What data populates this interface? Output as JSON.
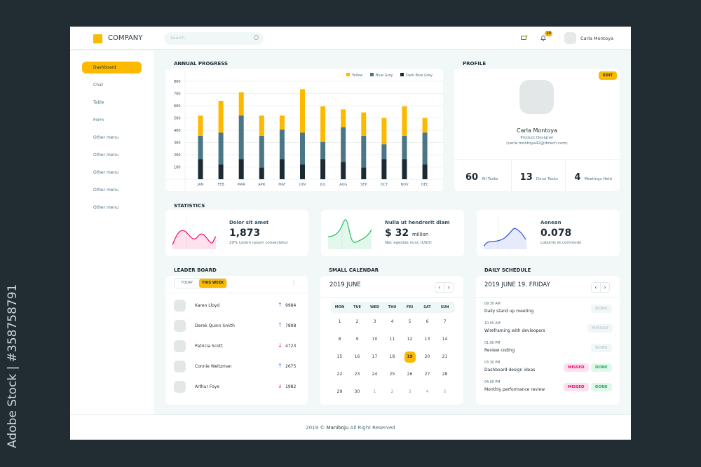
{
  "watermark": "Adobe Stock | #358758791",
  "header": {
    "company": "COMPANY",
    "search_placeholder": "Search",
    "notif_count": "10",
    "user_name": "Carla  Montoya"
  },
  "sidebar": {
    "items": [
      {
        "label": "Dashboard",
        "active": true
      },
      {
        "label": "Chat"
      },
      {
        "label": "Table"
      },
      {
        "label": "Form"
      },
      {
        "label": "Other menu"
      },
      {
        "label": "Other menu"
      },
      {
        "label": "Other menu"
      },
      {
        "label": "Other menu"
      },
      {
        "label": "Other menu"
      }
    ]
  },
  "sections": {
    "annual": "ANNUAL PROGRESS",
    "profile": "PROFILE",
    "statistics": "STATISTICS",
    "leader": "LEADER BOARD",
    "calendar": "SMALL CALENDAR",
    "schedule": "DAILY SCHEDULE"
  },
  "chart_data": {
    "type": "bar",
    "stacked": true,
    "categories": [
      "JAN",
      "FEB",
      "MAR",
      "APR",
      "MAY",
      "JUN",
      "JUL",
      "AUG",
      "SEP",
      "OCT",
      "NOV",
      "DEC"
    ],
    "yticks": [
      100,
      200,
      300,
      400,
      500,
      600,
      700,
      800
    ],
    "ylim": [
      0,
      800
    ],
    "grid": true,
    "legend": "top-right",
    "series": [
      {
        "name": "Dark Blue Grey",
        "color": "#1c2b33",
        "values": [
          165,
          120,
          165,
          95,
          165,
          120,
          165,
          140,
          95,
          165,
          165,
          120
        ]
      },
      {
        "name": "Blue Grey",
        "color": "#4a7686",
        "values": [
          190,
          260,
          355,
          260,
          240,
          260,
          140,
          285,
          260,
          120,
          190,
          260
        ]
      },
      {
        "name": "Yellow",
        "color": "#fbb900",
        "values": [
          165,
          260,
          190,
          165,
          115,
          355,
          290,
          145,
          190,
          215,
          240,
          120
        ]
      }
    ]
  },
  "profile": {
    "edit": "EDIT",
    "name": "Carla Montoya",
    "role": "Product Designer",
    "email": "(carla.montoya42@tbtech.com)",
    "stats": [
      {
        "value": "60",
        "label": "All Tasks"
      },
      {
        "value": "13",
        "label": "Done Tasks"
      },
      {
        "value": "4",
        "label": "Meetings Held"
      }
    ]
  },
  "statistics": [
    {
      "title": "Dolor sit amet",
      "value": "1,873",
      "unit": "",
      "sub": "20% Lorem ipsum consectetur",
      "color": "#f0196e"
    },
    {
      "title": "Nulla ut hendrerit diam",
      "value": "$ 32",
      "unit": "million",
      "sub": "Nec egestas nunc (USD)",
      "color": "#2ec46a"
    },
    {
      "title": "Aenean",
      "value": "0.078",
      "unit": "",
      "sub": "Lobortis et commodo",
      "color": "#3b5bdb"
    }
  ],
  "leaderboard": {
    "tabs": [
      "TODAY",
      "THIS WEEK"
    ],
    "active_tab": "THIS WEEK",
    "rows": [
      {
        "name": "Karen Lloyd",
        "trend": "up",
        "score": "9984"
      },
      {
        "name": "Derek Quinn Smith",
        "trend": "up",
        "score": "7898"
      },
      {
        "name": "Patricia  Scott",
        "trend": "down",
        "score": "4723"
      },
      {
        "name": "Connie Weitzman",
        "trend": "up",
        "score": "2675"
      },
      {
        "name": "Arthur Foye",
        "trend": "down",
        "score": "1982"
      }
    ]
  },
  "calendar": {
    "title": "2019 JUNE",
    "days": [
      "MON",
      "TUE",
      "WED",
      "THU",
      "FRI",
      "SAT",
      "SUN"
    ],
    "selected": "19",
    "weeks": [
      [
        "1",
        "2",
        "3",
        "4",
        "5",
        "6",
        "7"
      ],
      [
        "8",
        "9",
        "10",
        "11",
        "12",
        "13",
        "14"
      ],
      [
        "15",
        "16",
        "17",
        "18",
        "19",
        "20",
        "21"
      ],
      [
        "22",
        "23",
        "24",
        "25",
        "26",
        "27",
        "28"
      ],
      [
        "29",
        "30",
        "1",
        "2",
        "3",
        "4",
        "5"
      ]
    ]
  },
  "schedule": {
    "title": "2019 JUNE 19. FRIDAY",
    "items": [
      {
        "time": "09:30 AM",
        "title": "Daily stand up meeting",
        "missed": false,
        "missed_label": "",
        "done_label": "DONE",
        "done_active": false
      },
      {
        "time": "10:00 AM",
        "title": "Wireframing with devleopers",
        "missed": false,
        "missed_label": "",
        "done_label": "MISSED",
        "done_active": false
      },
      {
        "time": "01:00 PM",
        "title": "Review coding",
        "missed": false,
        "missed_label": "",
        "done_label": "DONE",
        "done_active": false
      },
      {
        "time": "03:30 PM",
        "title": "Dashboard design ideas",
        "missed": true,
        "missed_label": "MISSED",
        "done_label": "DONE",
        "done_active": true
      },
      {
        "time": "04:00 PM",
        "title": "Monthly performance review",
        "missed": true,
        "missed_label": "MISSED",
        "done_label": "DONE",
        "done_active": true
      }
    ]
  },
  "footer": {
    "prefix": "2019 © ",
    "brand": "Maniboju",
    "suffix": " All Right Reserved"
  }
}
